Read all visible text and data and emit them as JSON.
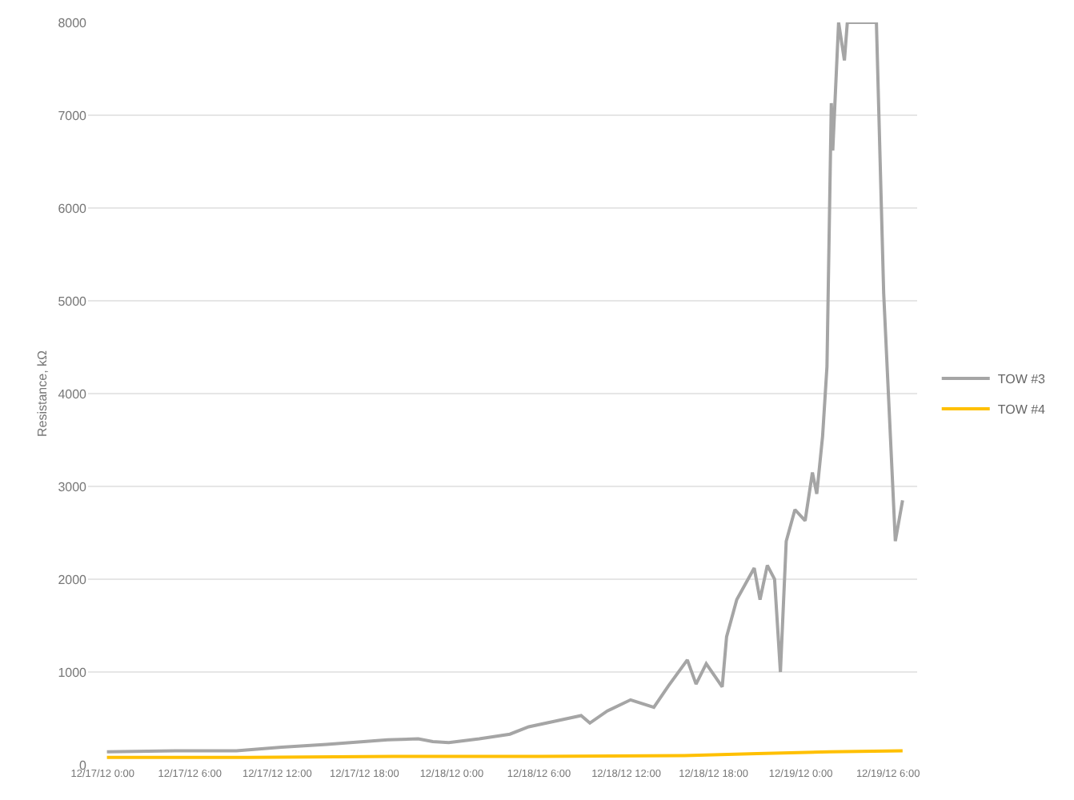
{
  "chart_data": {
    "type": "line",
    "ylabel": "Resistance, kΩ",
    "ylim": [
      0,
      8000
    ],
    "yticks": [
      0,
      1000,
      2000,
      3000,
      4000,
      5000,
      6000,
      7000,
      8000
    ],
    "xlim": [
      "--12-16T23:00",
      "--12-19T08:00"
    ],
    "xticks": [
      {
        "value": "--12-17T00:00",
        "label": "12/17/12 0:00"
      },
      {
        "value": "--12-17T06:00",
        "label": "12/17/12 6:00"
      },
      {
        "value": "--12-17T12:00",
        "label": "12/17/12 12:00"
      },
      {
        "value": "--12-17T18:00",
        "label": "12/17/12 18:00"
      },
      {
        "value": "--12-18T00:00",
        "label": "12/18/12 0:00"
      },
      {
        "value": "--12-18T06:00",
        "label": "12/18/12 6:00"
      },
      {
        "value": "--12-18T12:00",
        "label": "12/18/12 12:00"
      },
      {
        "value": "--12-18T18:00",
        "label": "12/18/12 18:00"
      },
      {
        "value": "--12-19T00:00",
        "label": "12/19/12 0:00"
      },
      {
        "value": "--12-19T06:00",
        "label": "12/19/12 6:00"
      }
    ],
    "grid": "y",
    "legend": "right",
    "marker": "none",
    "line_style": "solid",
    "series": [
      {
        "name": "TOW #3",
        "color": "#a5a5a5",
        "x": [
          "--12-17T00:18",
          "--12-17T05:00",
          "--12-17T09:12",
          "--12-17T12:18",
          "--12-17T15:24",
          "--12-17T19:36",
          "--12-17T21:42",
          "--12-17T22:42",
          "--12-17T23:48",
          "--12-18T01:54",
          "--12-18T04:00",
          "--12-18T05:18",
          "--12-18T07:06",
          "--12-18T08:54",
          "--12-18T09:30",
          "--12-18T10:42",
          "--12-18T12:18",
          "--12-18T13:54",
          "--12-18T14:54",
          "--12-18T16:12",
          "--12-18T16:48",
          "--12-18T17:30",
          "--12-18T18:36",
          "--12-18T18:54",
          "--12-18T19:36",
          "--12-18T20:48",
          "--12-18T21:12",
          "--12-18T21:42",
          "--12-18T22:12",
          "--12-18T22:36",
          "--12-18T23:00",
          "--12-18T23:36",
          "--12-19T00:18",
          "--12-19T00:48",
          "--12-19T01:06",
          "--12-19T01:30",
          "--12-19T01:48",
          "--12-19T02:06",
          "--12-19T02:12",
          "--12-19T02:36",
          "--12-19T03:00",
          "--12-19T03:12",
          "--12-19T05:12",
          "--12-19T05:42",
          "--12-19T06:30",
          "--12-19T07:00"
        ],
        "values": [
          140,
          150,
          150,
          190,
          220,
          270,
          280,
          250,
          240,
          280,
          330,
          410,
          470,
          530,
          450,
          580,
          700,
          620,
          850,
          1130,
          870,
          1090,
          840,
          1380,
          1780,
          2120,
          1780,
          2150,
          2000,
          1000,
          2410,
          2750,
          2630,
          3150,
          2920,
          3540,
          4290,
          7130,
          6620,
          8000,
          7590,
          8000,
          8000,
          5080,
          2410,
          2850
        ]
      },
      {
        "name": "TOW #4",
        "color": "#ffc000",
        "x": [
          "--12-17T00:18",
          "--12-17T10:00",
          "--12-17T20:00",
          "--12-18T06:00",
          "--12-18T16:00",
          "--12-18T21:00",
          "--12-19T02:00",
          "--12-19T07:00"
        ],
        "values": [
          80,
          80,
          90,
          90,
          100,
          120,
          140,
          150
        ]
      }
    ]
  }
}
